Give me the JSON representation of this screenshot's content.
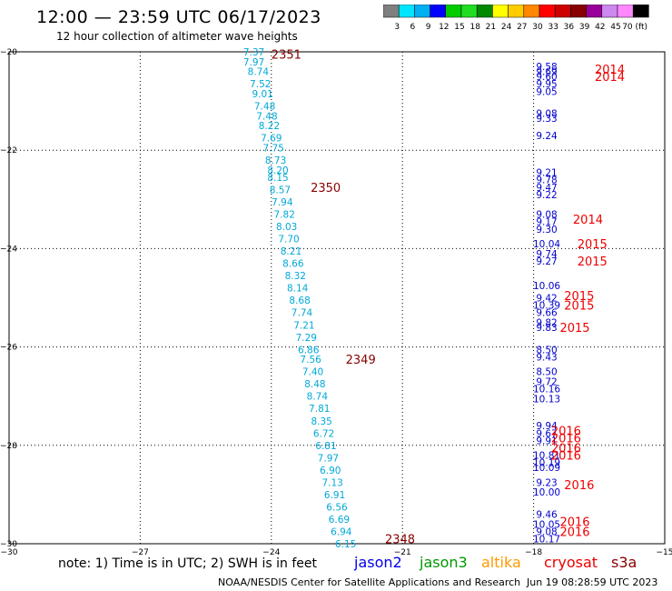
{
  "header": {
    "title": "12:00 — 23:59 UTC 06/17/2023",
    "subtitle": "12 hour collection of altimeter wave heights"
  },
  "color_scale": {
    "labels": [
      "3",
      "6",
      "9",
      "12",
      "15",
      "18",
      "21",
      "24",
      "27",
      "30",
      "33",
      "36",
      "39",
      "42",
      "45",
      "70 (ft)"
    ],
    "colors": [
      "#7f7f7f",
      "#00e5ff",
      "#00b0f0",
      "#0000ff",
      "#00cc00",
      "#22dd22",
      "#008800",
      "#ffff00",
      "#ffcc00",
      "#ff8800",
      "#ff0000",
      "#cc0000",
      "#880000",
      "#990099",
      "#cc88ee",
      "#ff88ff",
      "#000000"
    ]
  },
  "footer": {
    "note": "note:  1) Time is in UTC;  2) SWH is in feet",
    "credit": "NOAA/NESDIS Center for Satellite Applications and Research",
    "timestamp": "Jun 19 08:28:59 UTC 2023",
    "satellites": [
      {
        "name": "jason2",
        "color": "#0000ee"
      },
      {
        "name": "jason3",
        "color": "#009900"
      },
      {
        "name": "altika",
        "color": "#ff9900"
      },
      {
        "name": "cryosat",
        "color": "#ee0000"
      },
      {
        "name": "s3a",
        "color": "#880000"
      }
    ]
  },
  "chart_data": {
    "type": "scatter",
    "title": "12:00 — 23:59 UTC 06/17/2023",
    "xlim": [
      -30,
      -15
    ],
    "ylim": [
      -30,
      -20
    ],
    "x_ticks": [
      -30,
      -27,
      -24,
      -21,
      -18,
      -15
    ],
    "y_ticks": [
      -20,
      -22,
      -24,
      -26,
      -28,
      -30
    ],
    "grid": true,
    "tracks": [
      {
        "color": "#00a8d8",
        "points": [
          [
            -24.4,
            -20.0,
            "7.37"
          ],
          [
            -24.4,
            -20.2,
            "7.97"
          ],
          [
            -24.3,
            -20.4,
            "8.74"
          ],
          [
            -24.25,
            -20.65,
            "7.52"
          ],
          [
            -24.2,
            -20.85,
            "9.01"
          ],
          [
            -24.15,
            -21.1,
            "7.48"
          ],
          [
            -24.1,
            -21.3,
            "7.48"
          ],
          [
            -24.05,
            -21.5,
            "8.22"
          ],
          [
            -24.0,
            -21.75,
            "7.69"
          ],
          [
            -23.95,
            -21.95,
            "7.75"
          ],
          [
            -23.9,
            -22.2,
            "8.73"
          ],
          [
            -23.85,
            -22.4,
            "8.20"
          ],
          [
            -23.85,
            -22.55,
            "8.15"
          ],
          [
            -23.8,
            -22.8,
            "8.57"
          ],
          [
            -23.75,
            -23.05,
            "7.94"
          ],
          [
            -23.7,
            -23.3,
            "7.82"
          ],
          [
            -23.65,
            -23.55,
            "8.03"
          ],
          [
            -23.6,
            -23.8,
            "7.70"
          ],
          [
            -23.55,
            -24.05,
            "8.21"
          ],
          [
            -23.5,
            -24.3,
            "8.66"
          ],
          [
            -23.45,
            -24.55,
            "8.32"
          ],
          [
            -23.4,
            -24.8,
            "8.14"
          ],
          [
            -23.35,
            -25.05,
            "8.68"
          ],
          [
            -23.3,
            -25.3,
            "7.74"
          ],
          [
            -23.25,
            -25.55,
            "7.21"
          ],
          [
            -23.2,
            -25.8,
            "7.29"
          ],
          [
            -23.15,
            -26.05,
            "6.86"
          ],
          [
            -23.1,
            -26.25,
            "7.56"
          ],
          [
            -23.05,
            -26.5,
            "7.40"
          ],
          [
            -23.0,
            -26.75,
            "8.48"
          ],
          [
            -22.95,
            -27.0,
            "8.74"
          ],
          [
            -22.9,
            -27.25,
            "7.81"
          ],
          [
            -22.85,
            -27.5,
            "8.35"
          ],
          [
            -22.8,
            -27.75,
            "6.72"
          ],
          [
            -22.75,
            -28.0,
            "6.81"
          ],
          [
            -22.7,
            -28.25,
            "7.97"
          ],
          [
            -22.65,
            -28.5,
            "6.90"
          ],
          [
            -22.6,
            -28.75,
            "7.13"
          ],
          [
            -22.55,
            -29.0,
            "6.91"
          ],
          [
            -22.5,
            -29.25,
            "6.56"
          ],
          [
            -22.45,
            -29.5,
            "6.69"
          ],
          [
            -22.4,
            -29.75,
            "6.94"
          ],
          [
            -22.3,
            -30.0,
            "6.15"
          ]
        ]
      },
      {
        "color": "#0000cc",
        "points": [
          [
            -17.7,
            -20.3,
            "9.58"
          ],
          [
            -17.7,
            -20.4,
            "9.69"
          ],
          [
            -17.7,
            -20.5,
            "9.60"
          ],
          [
            -17.7,
            -20.65,
            "9.95"
          ],
          [
            -17.7,
            -20.8,
            "9.05"
          ],
          [
            -17.7,
            -21.25,
            "9.08"
          ],
          [
            -17.7,
            -21.35,
            "9.33"
          ],
          [
            -17.7,
            -21.7,
            "9.24"
          ],
          [
            -17.7,
            -22.45,
            "9.21"
          ],
          [
            -17.7,
            -22.6,
            "9.78"
          ],
          [
            -17.7,
            -22.75,
            "9.47"
          ],
          [
            -17.7,
            -22.9,
            "9.22"
          ],
          [
            -17.7,
            -23.3,
            "9.08"
          ],
          [
            -17.7,
            -23.45,
            "9.17"
          ],
          [
            -17.7,
            -23.6,
            "9.30"
          ],
          [
            -17.7,
            -23.9,
            "10.04"
          ],
          [
            -17.7,
            -24.1,
            "9.74"
          ],
          [
            -17.7,
            -24.25,
            "9.27"
          ],
          [
            -17.7,
            -24.75,
            "10.06"
          ],
          [
            -17.7,
            -25.0,
            "9.42"
          ],
          [
            -17.7,
            -25.15,
            "10.39"
          ],
          [
            -17.7,
            -25.3,
            "9.66"
          ],
          [
            -17.7,
            -25.5,
            "9.82"
          ],
          [
            -17.7,
            -25.6,
            "9.83"
          ],
          [
            -17.7,
            -26.05,
            "8.50"
          ],
          [
            -17.7,
            -26.2,
            "9.43"
          ],
          [
            -17.7,
            -26.5,
            "8.50"
          ],
          [
            -17.7,
            -26.7,
            "9.72"
          ],
          [
            -17.7,
            -26.85,
            "10.16"
          ],
          [
            -17.7,
            -27.05,
            "10.13"
          ],
          [
            -17.7,
            -27.6,
            "9.94"
          ],
          [
            -17.7,
            -27.75,
            "9.67"
          ],
          [
            -17.7,
            -27.9,
            "9.91"
          ],
          [
            -17.7,
            -28.2,
            "10.81"
          ],
          [
            -17.7,
            -28.35,
            "10.19"
          ],
          [
            -17.7,
            -28.45,
            "10.09"
          ],
          [
            -17.7,
            -28.75,
            "9.23"
          ],
          [
            -17.7,
            -28.95,
            "10.00"
          ],
          [
            -17.7,
            -29.4,
            "9.46"
          ],
          [
            -17.7,
            -29.6,
            "10.05"
          ],
          [
            -17.7,
            -29.75,
            "9.08"
          ],
          [
            -17.7,
            -29.9,
            "10.17"
          ]
        ]
      }
    ],
    "pass_labels": [
      {
        "x": -24.0,
        "y": -20.05,
        "text": "2351",
        "color": "#880000"
      },
      {
        "x": -23.1,
        "y": -22.75,
        "text": "2350",
        "color": "#880000"
      },
      {
        "x": -22.3,
        "y": -26.25,
        "text": "2349",
        "color": "#880000"
      },
      {
        "x": -21.4,
        "y": -29.9,
        "text": "2348",
        "color": "#880000"
      },
      {
        "x": -16.6,
        "y": -20.35,
        "text": "2014",
        "color": "#ee0000"
      },
      {
        "x": -16.6,
        "y": -20.5,
        "text": "2014",
        "color": "#ee0000"
      },
      {
        "x": -17.1,
        "y": -23.4,
        "text": "2014",
        "color": "#ee0000"
      },
      {
        "x": -17.0,
        "y": -23.9,
        "text": "2015",
        "color": "#ee0000"
      },
      {
        "x": -17.0,
        "y": -24.25,
        "text": "2015",
        "color": "#ee0000"
      },
      {
        "x": -17.3,
        "y": -24.95,
        "text": "2015",
        "color": "#ee0000"
      },
      {
        "x": -17.3,
        "y": -25.15,
        "text": "2015",
        "color": "#ee0000"
      },
      {
        "x": -17.4,
        "y": -25.6,
        "text": "2015",
        "color": "#ee0000"
      },
      {
        "x": -17.6,
        "y": -27.7,
        "text": "2016",
        "color": "#ee0000"
      },
      {
        "x": -17.6,
        "y": -27.85,
        "text": "2016",
        "color": "#ee0000"
      },
      {
        "x": -17.6,
        "y": -28.05,
        "text": "2016",
        "color": "#ee0000"
      },
      {
        "x": -17.6,
        "y": -28.2,
        "text": "2016",
        "color": "#ee0000"
      },
      {
        "x": -17.3,
        "y": -28.8,
        "text": "2016",
        "color": "#ee0000"
      },
      {
        "x": -17.4,
        "y": -29.55,
        "text": "2016",
        "color": "#ee0000"
      },
      {
        "x": -17.4,
        "y": -29.75,
        "text": "2016",
        "color": "#ee0000"
      }
    ]
  }
}
